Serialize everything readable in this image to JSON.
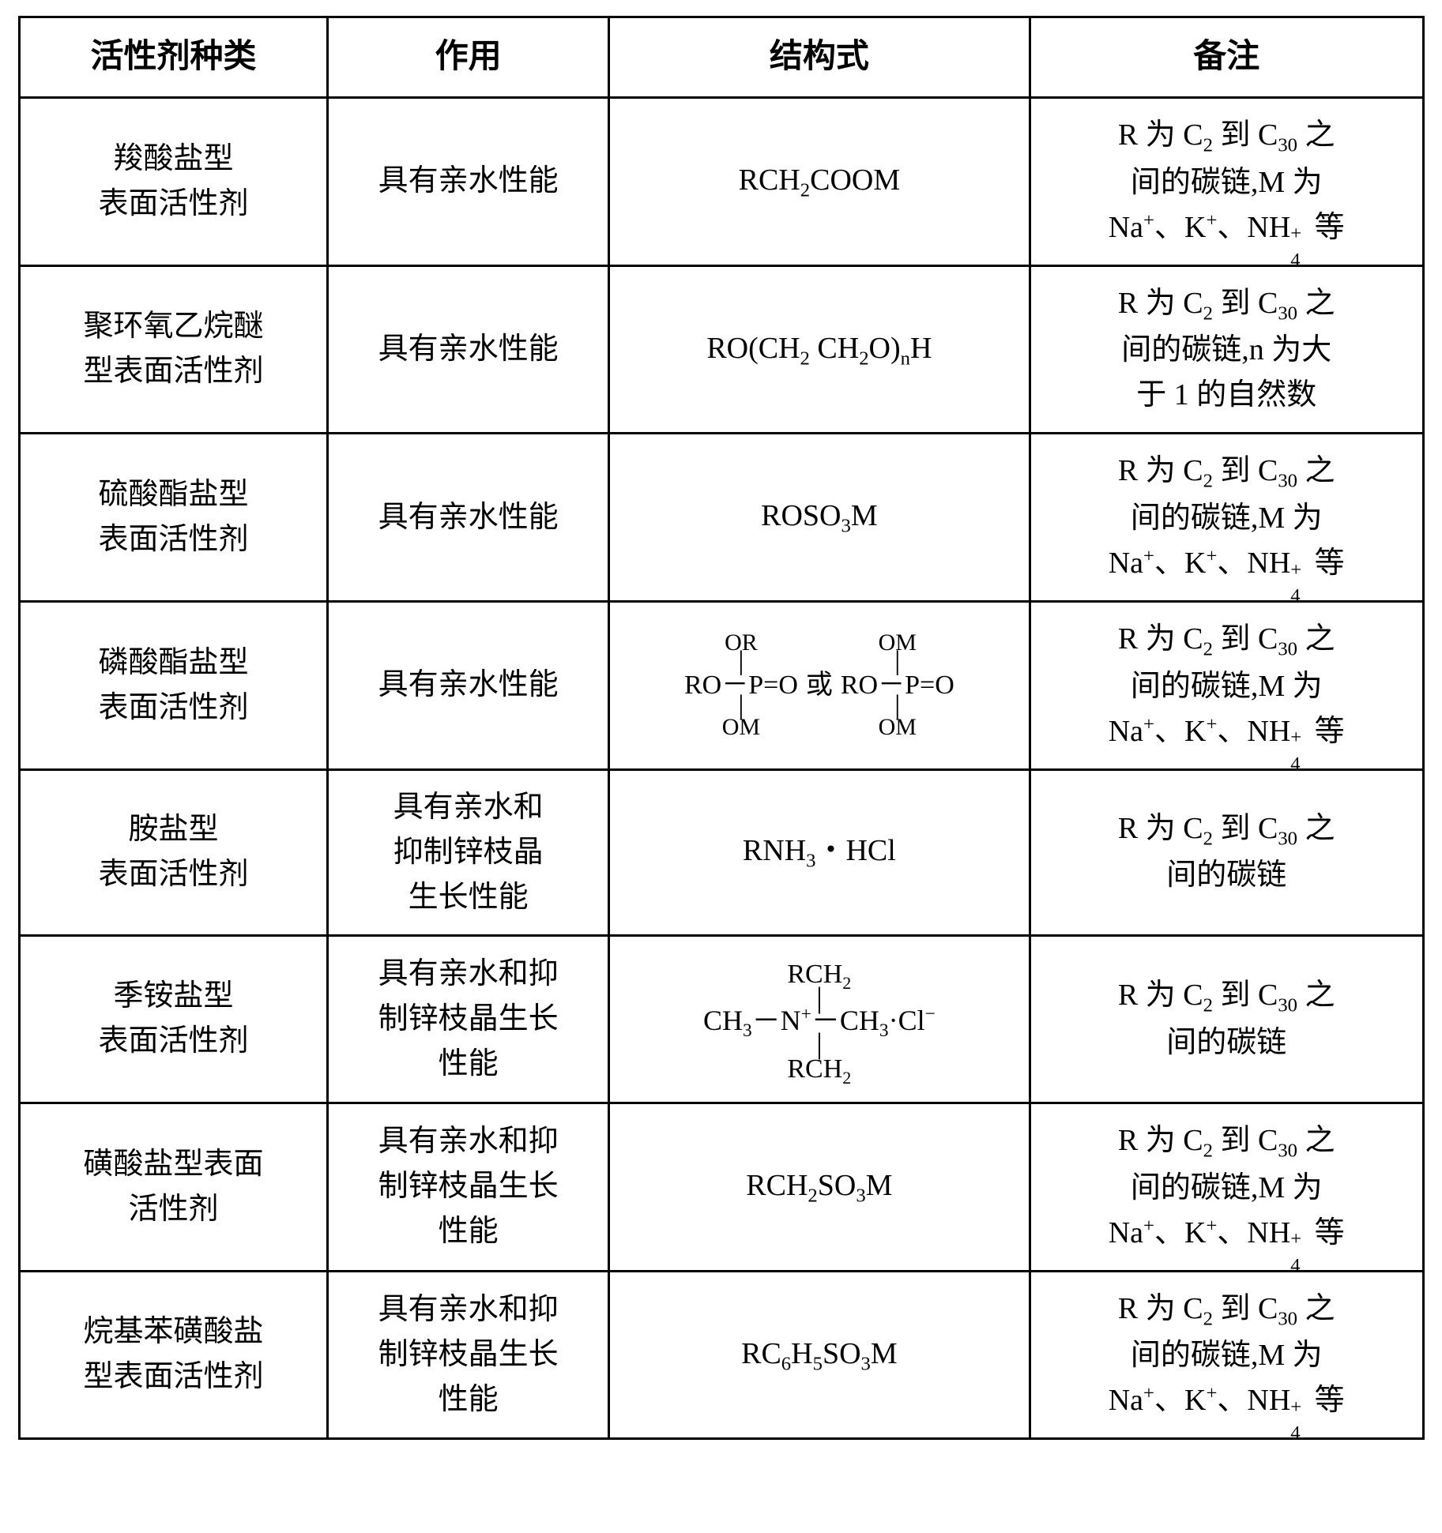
{
  "table": {
    "border_color": "#000000",
    "background_color": "#ffffff",
    "headers": [
      "活性剂种类",
      "作用",
      "结构式",
      "备注"
    ],
    "rows": [
      {
        "type_l1": "羧酸盐型",
        "type_l2": "表面活性剂",
        "effect": "具有亲水性能",
        "formula_kind": "simple",
        "formula_html": "RCH<sub>2</sub>COOM",
        "note_l1": "R 为 C<sub>2</sub> 到 C<sub>30</sub> 之",
        "note_l2": "间的碳链,M 为",
        "note_l3": "Na<sup>+</sup>、K<sup>+</sup>、NH<span class=\"subsup\"><span class=\"ss-sup\">+</span><span class=\"ss-sub\">4</span></span>等"
      },
      {
        "type_l1": "聚环氧乙烷醚",
        "type_l2": "型表面活性剂",
        "effect": "具有亲水性能",
        "formula_kind": "simple",
        "formula_html": "RO(CH<sub>2</sub> CH<sub>2</sub>O)<sub>n</sub>H",
        "note_l1": "R 为 C<sub>2</sub> 到 C<sub>30</sub> 之",
        "note_l2": "间的碳链,n 为大",
        "note_l3": "于 1 的自然数"
      },
      {
        "type_l1": "硫酸酯盐型",
        "type_l2": "表面活性剂",
        "effect": "具有亲水性能",
        "formula_kind": "simple",
        "formula_html": "ROSO<sub>3</sub>M",
        "note_l1": "R 为 C<sub>2</sub> 到 C<sub>30</sub> 之",
        "note_l2": "间的碳链,M 为",
        "note_l3": "Na<sup>+</sup>、K<sup>+</sup>、NH<span class=\"subsup\"><span class=\"ss-sup\">+</span><span class=\"ss-sub\">4</span></span>等"
      },
      {
        "type_l1": "磷酸酯盐型",
        "type_l2": "表面活性剂",
        "effect": "具有亲水性能",
        "formula_kind": "phosphate",
        "phosphate": {
          "left": {
            "top": "OR",
            "mid": "RO－P=O",
            "bot": "OM"
          },
          "or": "或",
          "right": {
            "top": "OM",
            "mid": "RO－P=O",
            "bot": "OM"
          }
        },
        "note_l1": "R 为 C<sub>2</sub> 到 C<sub>30</sub> 之",
        "note_l2": "间的碳链,M 为",
        "note_l3": "Na<sup>+</sup>、K<sup>+</sup>、NH<span class=\"subsup\"><span class=\"ss-sup\">+</span><span class=\"ss-sub\">4</span></span>等"
      },
      {
        "type_l1": "胺盐型",
        "type_l2": "表面活性剂",
        "effect_l1": "具有亲水和",
        "effect_l2": "抑制锌枝晶",
        "effect_l3": "生长性能",
        "formula_kind": "simple",
        "formula_html": "RNH<sub>3</sub>・HCl",
        "note_l1": "R 为 C<sub>2</sub> 到 C<sub>30</sub> 之",
        "note_l2": "间的碳链",
        "note_l3": ""
      },
      {
        "type_l1": "季铵盐型",
        "type_l2": "表面活性剂",
        "effect_l1": "具有亲水和抑",
        "effect_l2": "制锌枝晶生长",
        "effect_l3": "性能",
        "formula_kind": "quat",
        "quat": {
          "top": "RCH<sub>2</sub>",
          "mid": "CH<sub>3</sub>－N<sup>+</sup>－CH<sub>3</sub>·Cl<sup>−</sup>",
          "bot": "RCH<sub>2</sub>"
        },
        "note_l1": "R 为 C<sub>2</sub> 到 C<sub>30</sub> 之",
        "note_l2": "间的碳链",
        "note_l3": ""
      },
      {
        "type_l1": "磺酸盐型表面",
        "type_l2": "活性剂",
        "effect_l1": "具有亲水和抑",
        "effect_l2": "制锌枝晶生长",
        "effect_l3": "性能",
        "formula_kind": "simple",
        "formula_html": "RCH<sub>2</sub>SO<sub>3</sub>M",
        "note_l1": "R 为 C<sub>2</sub> 到 C<sub>30</sub> 之",
        "note_l2": "间的碳链,M 为",
        "note_l3": "Na<sup>+</sup>、K<sup>+</sup>、NH<span class=\"subsup\"><span class=\"ss-sup\">+</span><span class=\"ss-sub\">4</span></span>等"
      },
      {
        "type_l1": "烷基苯磺酸盐",
        "type_l2": "型表面活性剂",
        "effect_l1": "具有亲水和抑",
        "effect_l2": "制锌枝晶生长",
        "effect_l3": "性能",
        "formula_kind": "simple",
        "formula_html": "RC<sub>6</sub>H<sub>5</sub>SO<sub>3</sub>M",
        "note_l1": "R 为 C<sub>2</sub> 到 C<sub>30</sub> 之",
        "note_l2": "间的碳链,M 为",
        "note_l3": "Na<sup>+</sup>、K<sup>+</sup>、NH<span class=\"subsup\"><span class=\"ss-sup\">+</span><span class=\"ss-sub\">4</span></span>等"
      }
    ]
  }
}
